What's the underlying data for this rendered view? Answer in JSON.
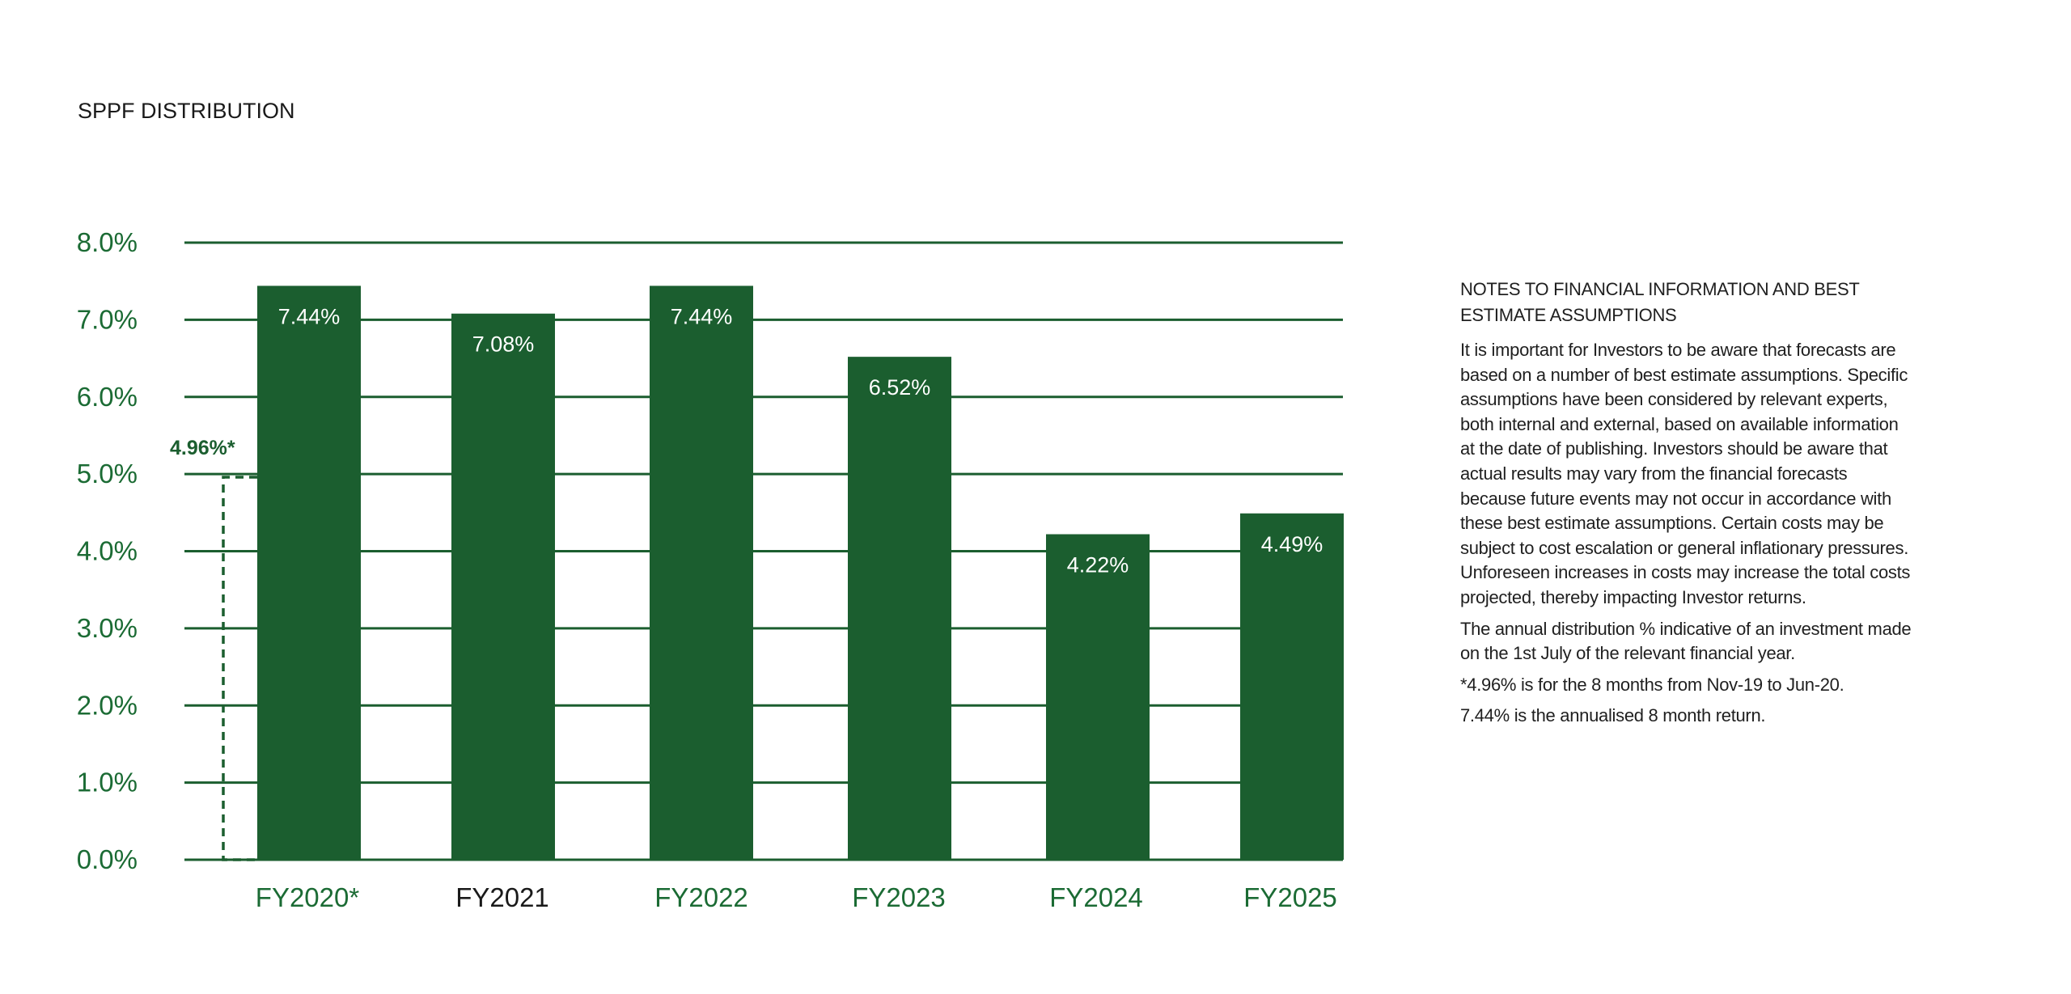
{
  "page": {
    "title": "SPPF DISTRIBUTION"
  },
  "colors": {
    "bar": "#1b5e2f",
    "grid": "#1b5e2f",
    "axis_text_green": "#1b6b34",
    "axis_text_dark": "#1a1a1a",
    "bar_label": "#ffffff"
  },
  "chart_data": {
    "type": "bar",
    "title": "SPPF DISTRIBUTION",
    "categories": [
      "FY2020*",
      "FY2021",
      "FY2022",
      "FY2023",
      "FY2024",
      "FY2025"
    ],
    "values": [
      7.44,
      7.08,
      7.44,
      6.52,
      4.22,
      4.49
    ],
    "data_labels": [
      "7.44%",
      "7.08%",
      "7.44%",
      "6.52%",
      "4.22%",
      "4.49%"
    ],
    "xlabel": "",
    "ylabel": "",
    "ylim": [
      0,
      8
    ],
    "yticks": [
      0,
      1,
      2,
      3,
      4,
      5,
      6,
      7,
      8
    ],
    "ytick_labels": [
      "0.0%",
      "1.0%",
      "2.0%",
      "3.0%",
      "4.0%",
      "5.0%",
      "6.0%",
      "7.0%",
      "8.0%"
    ],
    "grid": true,
    "legend": "none",
    "annotation": {
      "label": "4.96%*",
      "value": 4.96,
      "style": "dashed outline bar"
    }
  },
  "notes": {
    "heading": "NOTES TO FINANCIAL INFORMATION AND BEST ESTIMATE ASSUMPTIONS",
    "paragraphs": [
      "It is important for Investors to be aware that forecasts are based on a number of best estimate assumptions. Specific assumptions have been considered by relevant experts, both internal and external, based on available information at the date of publishing. Investors should be aware that actual results may vary from the financial forecasts because future events may not occur in accordance with these best estimate assumptions. Certain costs may be subject to cost escalation or general inflationary pressures. Unforeseen increases in costs may increase the total costs projected, thereby impacting Investor returns.",
      "The annual distribution % indicative of an investment made on the 1st July of the relevant financial year.",
      "*4.96% is for the 8 months from Nov-19 to Jun-20.",
      "7.44% is the annualised 8 month return."
    ]
  }
}
